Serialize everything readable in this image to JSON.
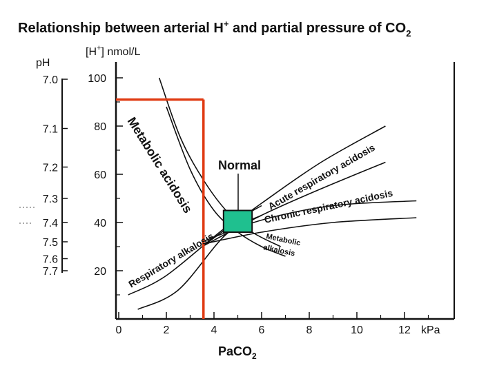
{
  "chart_data": {
    "type": "line",
    "title": "Relationship between arterial H",
    "title_sup": "+",
    "title_rest": " and partial pressure of CO",
    "title_sub": "2",
    "y_unit_label": "[H",
    "y_unit_sup": "+",
    "y_unit_rest": "] nmol/L",
    "x_unit": "kPa",
    "x_label": "PaCO",
    "x_label_sub": "2",
    "ph_label": "pH",
    "x_ticks": [
      "0",
      "2",
      "4",
      "6",
      "8",
      "10",
      "12"
    ],
    "x_tick_values": [
      0,
      2,
      4,
      6,
      8,
      10,
      12
    ],
    "y_ticks": [
      "20",
      "40",
      "60",
      "80",
      "100"
    ],
    "y_tick_values": [
      20,
      40,
      60,
      80,
      100
    ],
    "ph_ticks": [
      {
        "label": "7.0",
        "h": 100
      },
      {
        "label": "7.1",
        "h": 79
      },
      {
        "label": "7.2",
        "h": 63
      },
      {
        "label": "7.3",
        "h": 50
      },
      {
        "label": "7.4",
        "h": 40
      },
      {
        "label": "7.5",
        "h": 32
      },
      {
        "label": "7.6",
        "h": 25
      },
      {
        "label": "7.7",
        "h": 20
      }
    ],
    "xlim": [
      0,
      14
    ],
    "ylim": [
      0,
      108
    ],
    "series": [
      {
        "name": "Metabolic acidosis",
        "color": "#111111",
        "x": [
          2.0,
          3.0,
          4.0,
          5.0,
          6.0,
          7.0
        ],
        "y": [
          88,
          62,
          45,
          36,
          30,
          26
        ]
      },
      {
        "name": "Metabolic acidosis",
        "color": "#111111",
        "x": [
          1.7,
          2.6,
          3.6,
          4.6,
          5.6,
          6.8
        ],
        "y": [
          100,
          75,
          57,
          44,
          36,
          30
        ]
      },
      {
        "name": "Acute respiratory acidosis",
        "color": "#111111",
        "x": [
          3.5,
          6.0,
          8.5,
          11.2
        ],
        "y": [
          30,
          48,
          65,
          80
        ]
      },
      {
        "name": "",
        "color": "#111111",
        "x": [
          3.5,
          6.0,
          8.5,
          11.2
        ],
        "y": [
          30,
          43,
          54,
          65
        ]
      },
      {
        "name": "Chronic respiratory acidosis",
        "color": "#111111",
        "x": [
          3.5,
          6.0,
          9.0,
          12.5
        ],
        "y": [
          32,
          41,
          47,
          49
        ]
      },
      {
        "name": "",
        "color": "#111111",
        "x": [
          3.5,
          6.0,
          9.0,
          12.5
        ],
        "y": [
          31,
          36,
          40,
          42
        ]
      },
      {
        "name": "Respiratory alkalosis",
        "color": "#111111",
        "x": [
          0.4,
          2.0,
          4.5,
          6.0
        ],
        "y": [
          10,
          18,
          38,
          47
        ]
      },
      {
        "name": "",
        "color": "#111111",
        "x": [
          0.8,
          2.5,
          4.5,
          6.0
        ],
        "y": [
          4,
          12,
          35,
          43
        ]
      }
    ],
    "normal_region": {
      "label": "Normal",
      "x": [
        4.4,
        5.6
      ],
      "y": [
        36,
        45
      ],
      "color": "#1fc08f"
    },
    "highlight": {
      "color": "#e03a12",
      "pco2": 3.5,
      "h": 91
    },
    "curve_labels": [
      {
        "text": "Metabolic acidosis",
        "color": "#111111"
      },
      {
        "text": "Acute respiratory acidosis",
        "color": "#111111"
      },
      {
        "text": "Chronic respiratory acidosis",
        "color": "#111111"
      },
      {
        "text": "Respiratory alkalosis",
        "color": "#111111"
      },
      {
        "text": "Metabolic",
        "color": "#111111"
      },
      {
        "text": "alkalosis",
        "color": "#111111"
      }
    ],
    "grid": false,
    "legend": "none"
  }
}
